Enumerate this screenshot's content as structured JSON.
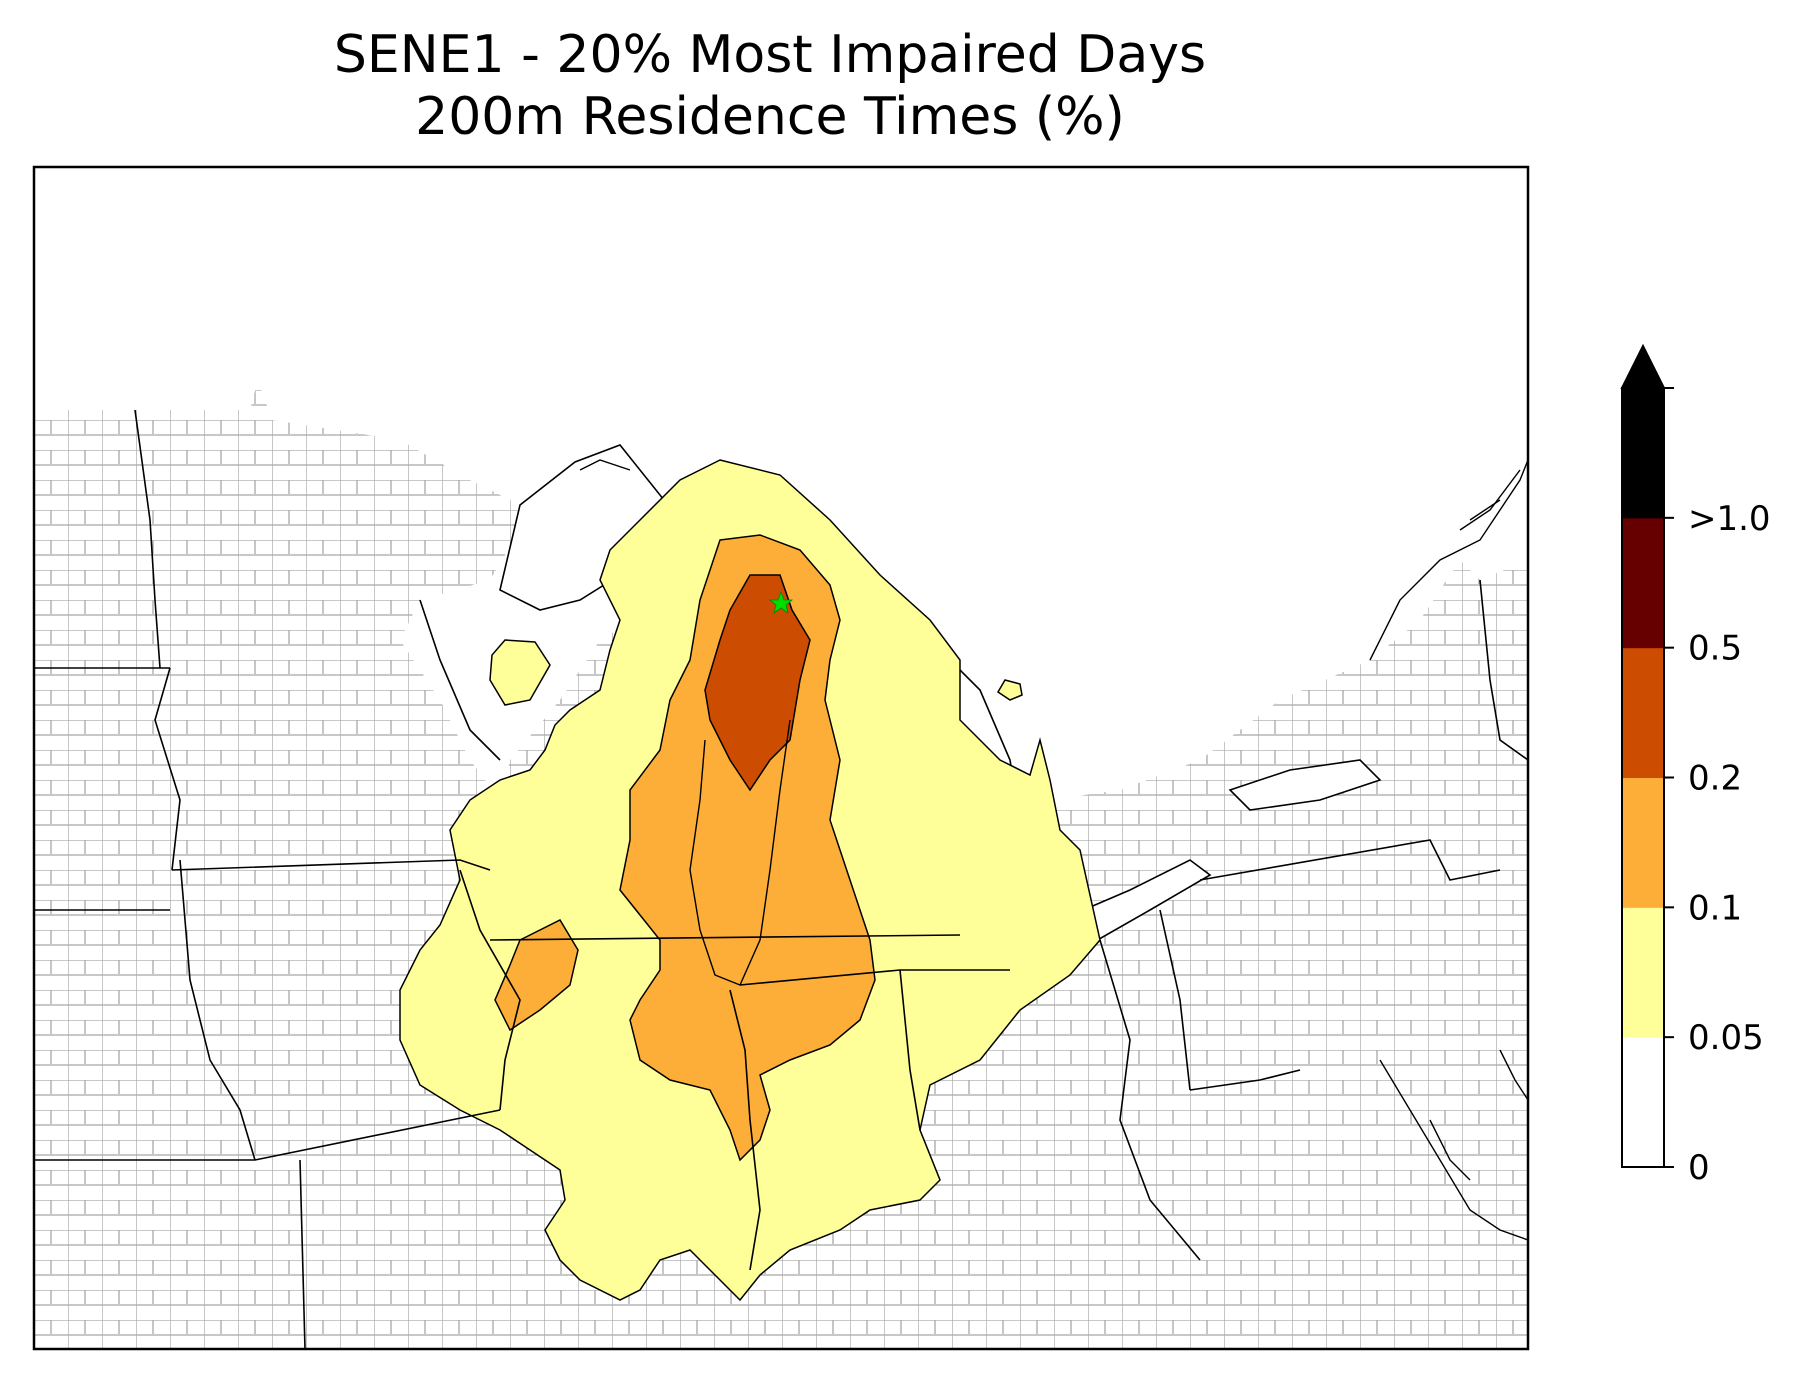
{
  "title": {
    "line1": "SENE1 - 20% Most Impaired Days",
    "line2": "200m Residence Times (%)"
  },
  "colorbar": {
    "levels": [
      {
        "label": "0",
        "color": "#ffffff"
      },
      {
        "label": "0.05",
        "color": "#ffff99"
      },
      {
        "label": "0.1",
        "color": "#fdae38"
      },
      {
        "label": "0.2",
        "color": "#cc4c02"
      },
      {
        "label": "0.5",
        "color": "#660000"
      },
      {
        "label": ">1.0",
        "color": "#000000"
      }
    ],
    "extend": "max"
  },
  "site_marker": {
    "name": "SENE1",
    "color": "#00dd00",
    "symbol": "star"
  }
}
